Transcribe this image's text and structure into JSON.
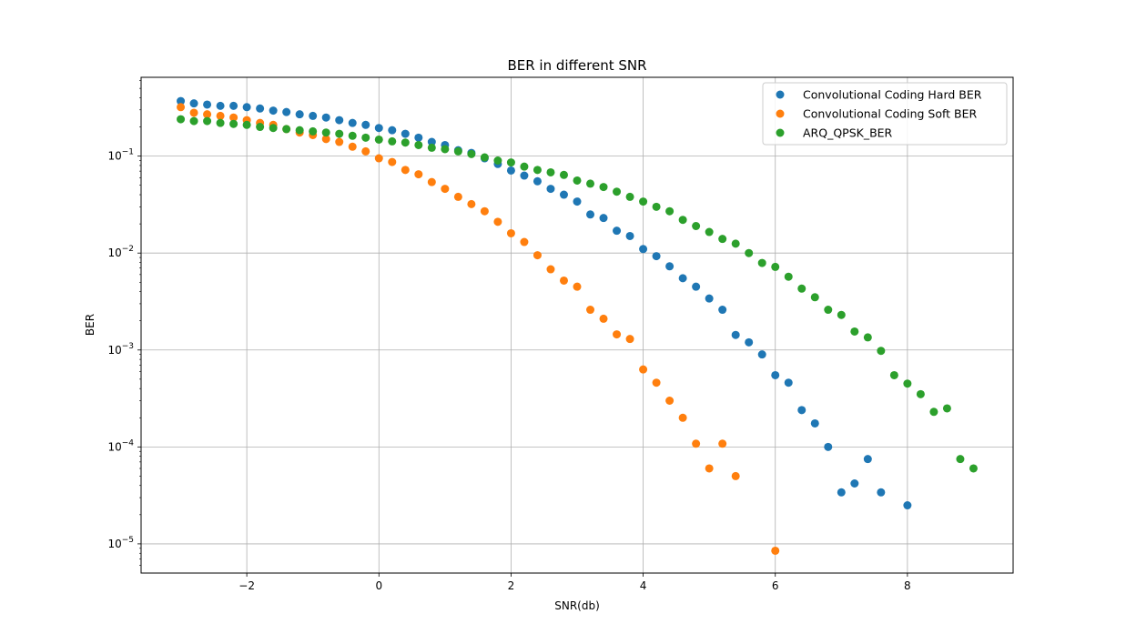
{
  "chart_data": {
    "type": "scatter",
    "title": "BER in different SNR",
    "xlabel": "SNR(db)",
    "ylabel": "BER",
    "xlim": [
      -3.6,
      9.6
    ],
    "ylim": [
      5e-06,
      0.65
    ],
    "yscale": "log",
    "grid": true,
    "legend_position": "top-right",
    "x_ticks": [
      {
        "value": -2,
        "label": "−2"
      },
      {
        "value": 0,
        "label": "0"
      },
      {
        "value": 2,
        "label": "2"
      },
      {
        "value": 4,
        "label": "4"
      },
      {
        "value": 6,
        "label": "6"
      },
      {
        "value": 8,
        "label": "8"
      }
    ],
    "y_ticks": [
      {
        "value": 1e-05,
        "base": "10",
        "exp": "−5"
      },
      {
        "value": 0.0001,
        "base": "10",
        "exp": "−4"
      },
      {
        "value": 0.001,
        "base": "10",
        "exp": "−3"
      },
      {
        "value": 0.01,
        "base": "10",
        "exp": "−2"
      },
      {
        "value": 0.1,
        "base": "10",
        "exp": "−1"
      }
    ],
    "series": [
      {
        "name": "Convolutional Coding Hard BER",
        "color": "#1f77b4",
        "x": [
          -3.0,
          -2.8,
          -2.6,
          -2.4,
          -2.2,
          -2.0,
          -1.8,
          -1.6,
          -1.4,
          -1.2,
          -1.0,
          -0.8,
          -0.6,
          -0.4,
          -0.2,
          0.0,
          0.2,
          0.4,
          0.6,
          0.8,
          1.0,
          1.2,
          1.4,
          1.6,
          1.8,
          2.0,
          2.2,
          2.4,
          2.6,
          2.8,
          3.0,
          3.2,
          3.4,
          3.6,
          3.8,
          4.0,
          4.2,
          4.4,
          4.6,
          4.8,
          5.0,
          5.2,
          5.4,
          5.6,
          5.8,
          6.0,
          6.2,
          6.4,
          6.6,
          6.8,
          7.0,
          7.2,
          7.4,
          7.6,
          8.0
        ],
        "y": [
          0.37,
          0.35,
          0.34,
          0.33,
          0.33,
          0.32,
          0.31,
          0.295,
          0.285,
          0.27,
          0.26,
          0.25,
          0.235,
          0.22,
          0.21,
          0.195,
          0.185,
          0.17,
          0.155,
          0.14,
          0.13,
          0.115,
          0.108,
          0.095,
          0.083,
          0.071,
          0.063,
          0.055,
          0.046,
          0.04,
          0.034,
          0.025,
          0.023,
          0.017,
          0.015,
          0.011,
          0.0093,
          0.0073,
          0.0055,
          0.0045,
          0.0034,
          0.0026,
          0.00143,
          0.0012,
          0.0009,
          0.00055,
          0.00046,
          0.00024,
          0.000175,
          0.0001,
          3.4e-05,
          4.2e-05,
          7.5e-05,
          3.4e-05,
          2.5e-05
        ]
      },
      {
        "name": "Convolutional Coding Soft BER",
        "color": "#ff7f0e",
        "x": [
          -3.0,
          -2.8,
          -2.6,
          -2.4,
          -2.2,
          -2.0,
          -1.8,
          -1.6,
          -1.4,
          -1.2,
          -1.0,
          -0.8,
          -0.6,
          -0.4,
          -0.2,
          0.0,
          0.2,
          0.4,
          0.6,
          0.8,
          1.0,
          1.2,
          1.4,
          1.6,
          1.8,
          2.0,
          2.2,
          2.4,
          2.6,
          2.8,
          3.0,
          3.2,
          3.4,
          3.6,
          3.8,
          4.0,
          4.2,
          4.4,
          4.6,
          4.8,
          5.0,
          5.2,
          5.4,
          6.0
        ],
        "y": [
          0.32,
          0.28,
          0.27,
          0.26,
          0.25,
          0.235,
          0.22,
          0.21,
          0.19,
          0.175,
          0.165,
          0.15,
          0.14,
          0.125,
          0.112,
          0.095,
          0.087,
          0.072,
          0.065,
          0.054,
          0.046,
          0.038,
          0.032,
          0.027,
          0.021,
          0.016,
          0.013,
          0.0095,
          0.0068,
          0.0052,
          0.0045,
          0.0026,
          0.0021,
          0.00145,
          0.0013,
          0.00063,
          0.00046,
          0.0003,
          0.0002,
          0.000108,
          6e-05,
          0.000108,
          5e-05,
          8.5e-06
        ]
      },
      {
        "name": "ARQ_QPSK_BER",
        "color": "#2ca02c",
        "x": [
          -3.0,
          -2.8,
          -2.6,
          -2.4,
          -2.2,
          -2.0,
          -1.8,
          -1.6,
          -1.4,
          -1.2,
          -1.0,
          -0.8,
          -0.6,
          -0.4,
          -0.2,
          0.0,
          0.2,
          0.4,
          0.6,
          0.8,
          1.0,
          1.2,
          1.4,
          1.6,
          1.8,
          2.0,
          2.2,
          2.4,
          2.6,
          2.8,
          3.0,
          3.2,
          3.4,
          3.6,
          3.8,
          4.0,
          4.2,
          4.4,
          4.6,
          4.8,
          5.0,
          5.2,
          5.4,
          5.6,
          5.8,
          6.0,
          6.2,
          6.4,
          6.6,
          6.8,
          7.0,
          7.2,
          7.4,
          7.6,
          7.8,
          8.0,
          8.2,
          8.4,
          8.6,
          8.8,
          9.0
        ],
        "y": [
          0.24,
          0.23,
          0.23,
          0.22,
          0.215,
          0.21,
          0.2,
          0.195,
          0.19,
          0.185,
          0.18,
          0.175,
          0.17,
          0.162,
          0.155,
          0.148,
          0.142,
          0.138,
          0.13,
          0.122,
          0.118,
          0.112,
          0.105,
          0.097,
          0.09,
          0.086,
          0.078,
          0.072,
          0.068,
          0.064,
          0.056,
          0.052,
          0.048,
          0.043,
          0.038,
          0.034,
          0.03,
          0.027,
          0.022,
          0.019,
          0.0165,
          0.014,
          0.0125,
          0.01,
          0.0079,
          0.0072,
          0.0057,
          0.0043,
          0.0035,
          0.0026,
          0.0023,
          0.00155,
          0.00135,
          0.00098,
          0.00055,
          0.00045,
          0.00035,
          0.00023,
          0.00025,
          7.5e-05,
          6e-05
        ]
      }
    ]
  }
}
